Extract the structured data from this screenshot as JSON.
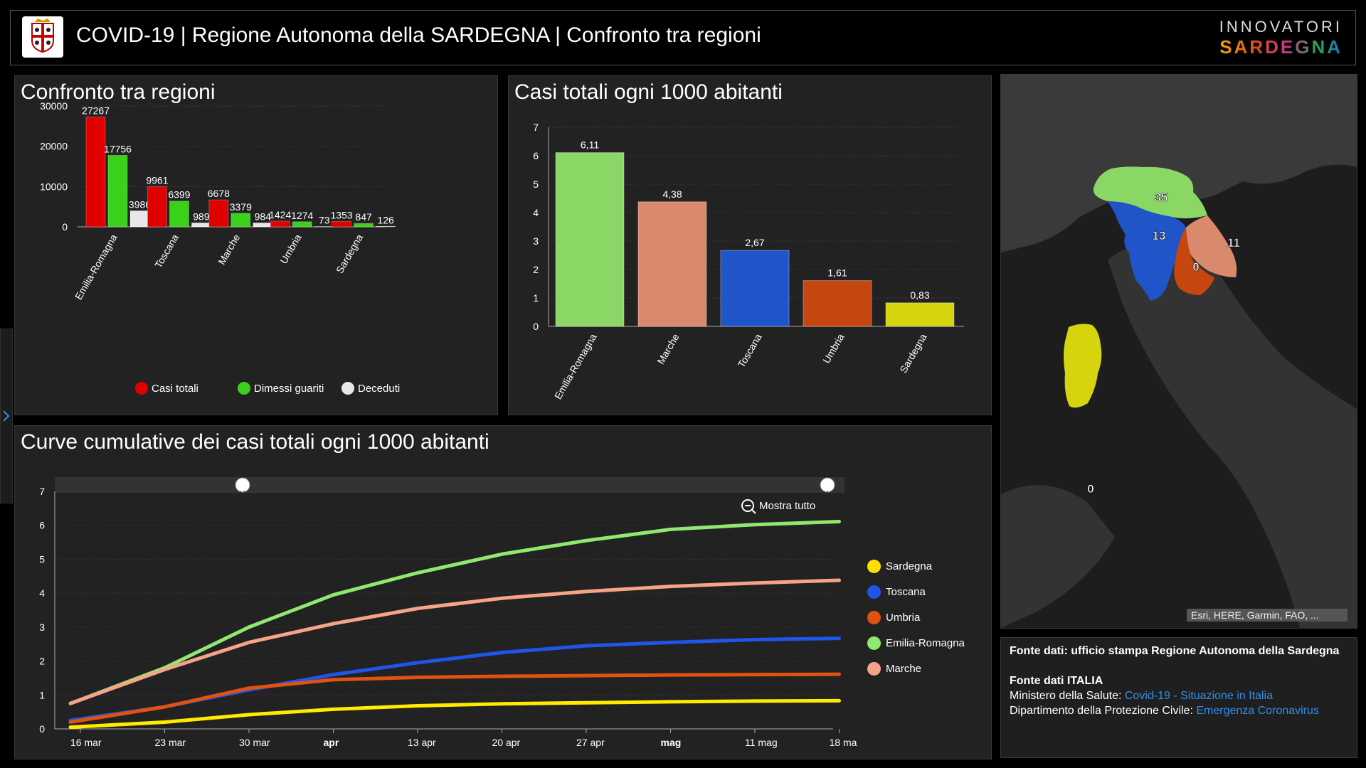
{
  "header": {
    "title": "COVID-19 | Regione Autonoma della SARDEGNA | Confronto tra regioni",
    "brand_line1": "INNOVATORI",
    "brand_line2": "SARDEGNA",
    "logo_icon": "sardinia-coat-of-arms-icon"
  },
  "panels": {
    "confronto_title": "Confronto tra regioni",
    "casi1000_title": "Casi totali ogni 1000 abitanti",
    "curve_title": "Curve cumulative dei casi totali ogni 1000 abitanti"
  },
  "colors": {
    "casi_totali": "#e00000",
    "dimessi": "#39d11a",
    "deceduti": "#e8e8e8",
    "emilia": "#8bd766",
    "marche": "#d98a6c",
    "toscana": "#1f55c8",
    "umbria": "#c6460f",
    "sardegna": "#d6d30f"
  },
  "chart_data": [
    {
      "type": "bar",
      "title": "Confronto tra regioni",
      "categories": [
        "Emilia-Romagna",
        "Toscana",
        "Marche",
        "Umbria",
        "Sardegna"
      ],
      "series": [
        {
          "name": "Casi totali",
          "values": [
            27267,
            9961,
            6678,
            1424,
            1353
          ]
        },
        {
          "name": "Dimessi guariti",
          "values": [
            17756,
            6399,
            3379,
            1274,
            847
          ]
        },
        {
          "name": "Deceduti",
          "values": [
            3986,
            989,
            984,
            73,
            126
          ]
        }
      ],
      "ylim": [
        0,
        30000
      ],
      "yticks": [
        0,
        10000,
        20000,
        30000
      ],
      "legend_position": "bottom"
    },
    {
      "type": "bar",
      "title": "Casi totali ogni 1000 abitanti",
      "categories": [
        "Emilia-Romagna",
        "Marche",
        "Toscana",
        "Umbria",
        "Sardegna"
      ],
      "values": [
        6.11,
        4.38,
        2.67,
        1.61,
        0.83
      ],
      "labels": [
        "6,11",
        "4,38",
        "2,67",
        "1,61",
        "0,83"
      ],
      "ylim": [
        0,
        7
      ],
      "yticks": [
        0,
        1,
        2,
        3,
        4,
        5,
        6,
        7
      ]
    },
    {
      "type": "line",
      "title": "Curve cumulative dei casi totali ogni 1000 abitanti",
      "x_ticks": [
        "16 mar",
        "23 mar",
        "30 mar",
        "apr",
        "13 apr",
        "20 apr",
        "27 apr",
        "mag",
        "11 mag",
        "18 ma"
      ],
      "ylim": [
        0,
        7
      ],
      "yticks": [
        0,
        1,
        2,
        3,
        4,
        5,
        6,
        7
      ],
      "zoom_label": "Mostra tutto",
      "legend_position": "right",
      "series": [
        {
          "name": "Sardegna",
          "x": [
            "16 mar",
            "23 mar",
            "30 mar",
            "6 apr",
            "13 apr",
            "20 apr",
            "27 apr",
            "4 mag",
            "11 mag",
            "18 mag"
          ],
          "values": [
            0.05,
            0.2,
            0.42,
            0.58,
            0.68,
            0.74,
            0.77,
            0.8,
            0.82,
            0.83
          ]
        },
        {
          "name": "Toscana",
          "x": [
            "16 mar",
            "23 mar",
            "30 mar",
            "6 apr",
            "13 apr",
            "20 apr",
            "27 apr",
            "4 mag",
            "11 mag",
            "18 mag"
          ],
          "values": [
            0.25,
            0.65,
            1.15,
            1.6,
            1.95,
            2.25,
            2.45,
            2.55,
            2.63,
            2.67
          ]
        },
        {
          "name": "Umbria",
          "x": [
            "16 mar",
            "23 mar",
            "30 mar",
            "6 apr",
            "13 apr",
            "20 apr",
            "27 apr",
            "4 mag",
            "11 mag",
            "18 mag"
          ],
          "values": [
            0.2,
            0.65,
            1.2,
            1.45,
            1.52,
            1.55,
            1.57,
            1.59,
            1.6,
            1.61
          ]
        },
        {
          "name": "Emilia-Romagna",
          "x": [
            "16 mar",
            "23 mar",
            "30 mar",
            "6 apr",
            "13 apr",
            "20 apr",
            "27 apr",
            "4 mag",
            "11 mag",
            "18 mag"
          ],
          "values": [
            0.75,
            1.8,
            3.0,
            3.95,
            4.6,
            5.15,
            5.55,
            5.88,
            6.02,
            6.11
          ]
        },
        {
          "name": "Marche",
          "x": [
            "16 mar",
            "23 mar",
            "30 mar",
            "6 apr",
            "13 apr",
            "20 apr",
            "27 apr",
            "4 mag",
            "11 mag",
            "18 mag"
          ],
          "values": [
            0.75,
            1.75,
            2.55,
            3.1,
            3.55,
            3.85,
            4.05,
            4.2,
            4.3,
            4.38
          ]
        }
      ]
    }
  ],
  "map": {
    "labels": [
      {
        "region": "Emilia-Romagna",
        "value": "35"
      },
      {
        "region": "Toscana",
        "value": "13"
      },
      {
        "region": "Marche",
        "value": "11"
      },
      {
        "region": "Umbria",
        "value": "0"
      },
      {
        "region": "Sardegna",
        "value": "0"
      }
    ],
    "attribution": "Esri, HERE, Garmin, FAO, ..."
  },
  "sources": {
    "line1": "Fonte dati: ufficio stampa Regione Autonoma della Sardegna",
    "line2": "Fonte dati ITALIA",
    "ministero_prefix": "Ministero della Salute: ",
    "ministero_link": "Covid-19 - Situazione in Italia",
    "protezione_prefix": "Dipartimento della Protezione Civile: ",
    "protezione_link": "Emergenza Coronavirus"
  }
}
